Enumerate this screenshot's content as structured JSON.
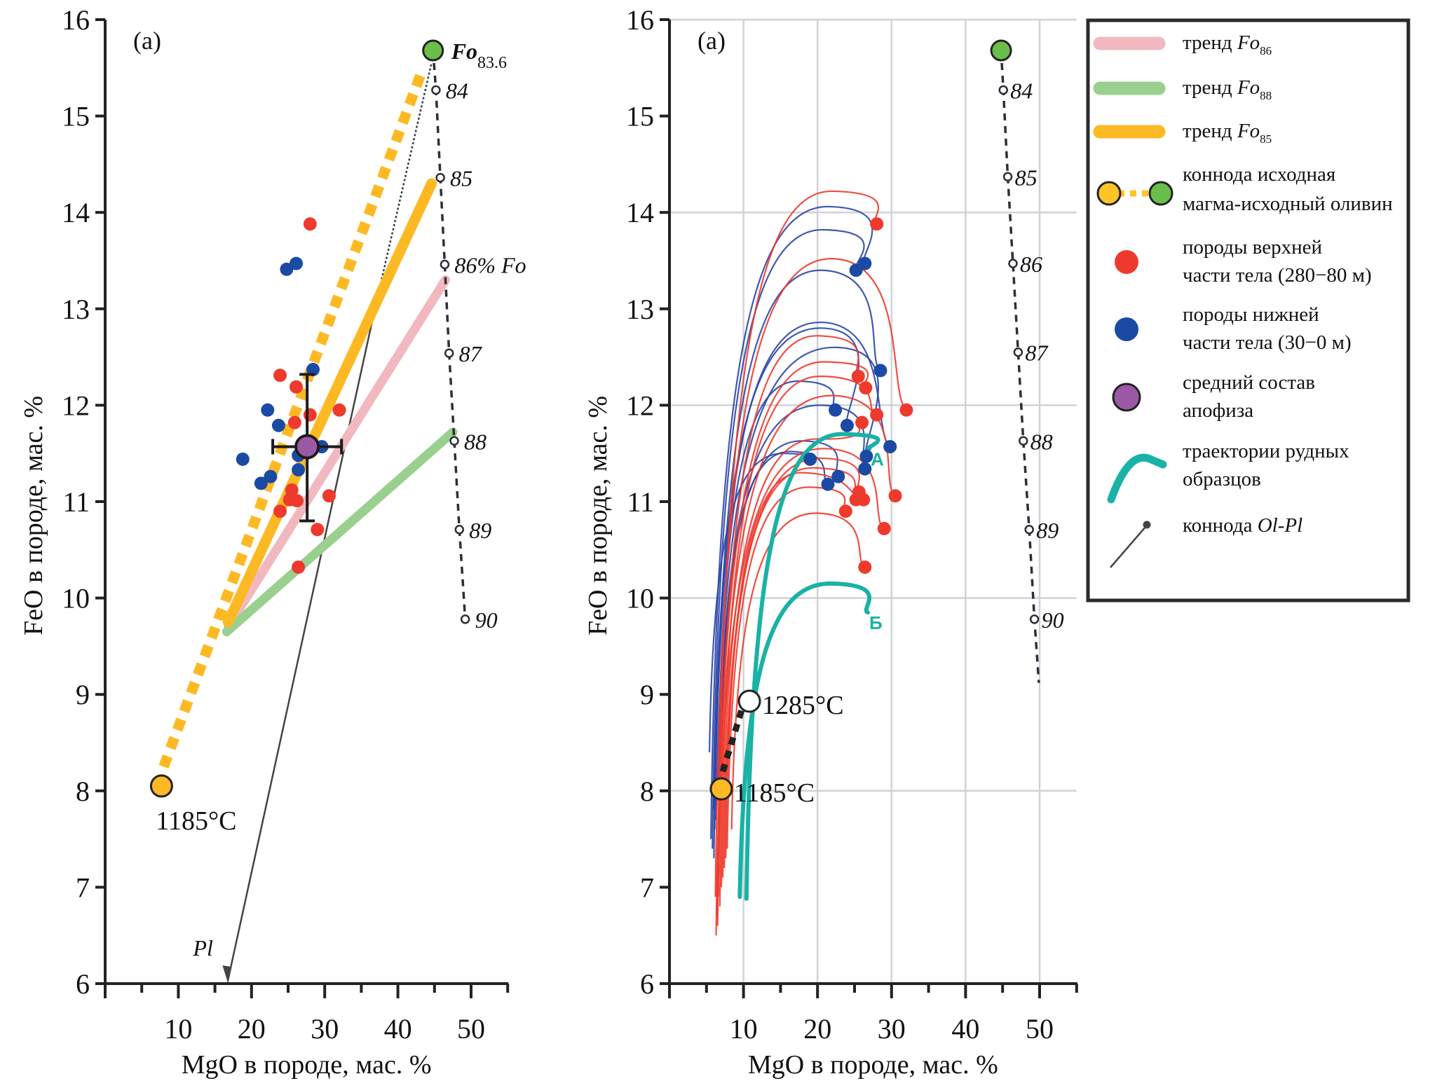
{
  "chart_data": [
    {
      "type": "scatter",
      "panel_label": "(a)",
      "xlabel": "MgO  в породе, мас. %",
      "ylabel": "FeO в породе, мас. %",
      "xlim": [
        0,
        55
      ],
      "ylim": [
        6,
        16
      ],
      "x_ticks": [
        10,
        20,
        30,
        40,
        50
      ],
      "x_minor_ticks": [
        5,
        15,
        25,
        35,
        45,
        55
      ],
      "y_ticks": [
        6,
        7,
        8,
        9,
        10,
        11,
        12,
        13,
        14,
        15,
        16
      ],
      "grid": false,
      "series": [
        {
          "name": "тренд Fo86",
          "kind": "line",
          "color": "#f2b8c0",
          "points": [
            [
              16.8,
              9.7
            ],
            [
              46.5,
              13.3
            ]
          ]
        },
        {
          "name": "тренд Fo88",
          "kind": "line",
          "color": "#99d08f",
          "points": [
            [
              16.6,
              9.65
            ],
            [
              47.5,
              11.72
            ]
          ]
        },
        {
          "name": "тренд Fo85",
          "kind": "line",
          "color": "#fdb924",
          "points": [
            [
              16.8,
              9.75
            ],
            [
              44.6,
              14.3
            ]
          ]
        },
        {
          "name": "коннода исходная магма-исходный оливин",
          "kind": "dashed-thick",
          "color": "#fdb924",
          "points": [
            [
              8.0,
              8.25
            ],
            [
              43.2,
              15.45
            ]
          ]
        },
        {
          "name": "коннода Ol-Pl",
          "kind": "arrow",
          "color": "#444444",
          "points": [
            [
              37.0,
              13.05
            ],
            [
              16.8,
              6.0
            ]
          ],
          "end_label": "Pl"
        },
        {
          "name": "коннода Ol-Pl (продолжение)",
          "kind": "dotted",
          "color": "#333a44",
          "points": [
            [
              37.0,
              13.05
            ],
            [
              44.6,
              15.55
            ]
          ]
        },
        {
          "name": "породы верхней части тела (280−80 м)",
          "kind": "points",
          "color": "#ee3a2c",
          "points": [
            [
              28.0,
              13.88
            ],
            [
              23.9,
              12.31
            ],
            [
              26.1,
              12.19
            ],
            [
              28.0,
              11.9
            ],
            [
              32.0,
              11.95
            ],
            [
              25.9,
              11.82
            ],
            [
              25.5,
              11.12
            ],
            [
              25.2,
              11.02
            ],
            [
              26.2,
              11.01
            ],
            [
              23.9,
              10.9
            ],
            [
              30.6,
              11.06
            ],
            [
              29.0,
              10.71
            ],
            [
              26.4,
              10.32
            ]
          ]
        },
        {
          "name": "породы нижней части тела (30−0 м)",
          "kind": "points",
          "color": "#1b4aa5",
          "points": [
            [
              26.1,
              13.47
            ],
            [
              24.8,
              13.41
            ],
            [
              28.4,
              12.37
            ],
            [
              22.2,
              11.95
            ],
            [
              23.7,
              11.79
            ],
            [
              18.8,
              11.44
            ],
            [
              22.6,
              11.26
            ],
            [
              21.3,
              11.19
            ],
            [
              26.4,
              11.48
            ],
            [
              26.4,
              11.33
            ],
            [
              29.6,
              11.57
            ]
          ]
        },
        {
          "name": "средний состав апофиза",
          "kind": "mean",
          "color": "#9b59a5",
          "point": [
            27.6,
            11.57
          ],
          "x_err": [
            22.9,
            32.3
          ],
          "y_err": [
            10.8,
            12.32
          ]
        },
        {
          "name": "исходная магма",
          "kind": "marker",
          "color": "#fdb924",
          "point": [
            7.7,
            8.05
          ],
          "label": "1185°C"
        },
        {
          "name": "исходный оливин",
          "kind": "marker",
          "color": "#6abf4b",
          "point": [
            44.8,
            15.68
          ],
          "label_main": "Fo",
          "label_sub": "83.6"
        },
        {
          "name": "оливин Fo",
          "kind": "olivine-line",
          "points": [
            [
              45.2,
              15.27
            ],
            [
              45.8,
              14.36
            ],
            [
              46.4,
              13.46
            ],
            [
              47.0,
              12.54
            ],
            [
              47.7,
              11.63
            ],
            [
              48.4,
              10.71
            ],
            [
              49.2,
              9.78
            ]
          ],
          "labels": [
            "84",
            "85",
            "86% Fo",
            "87",
            "88",
            "89",
            "90"
          ]
        }
      ]
    },
    {
      "type": "line",
      "panel_label": "(a)",
      "xlabel": "MgO  в породе, мас. %",
      "ylabel": "FeO в породе, мас. %",
      "xlim": [
        0,
        55
      ],
      "ylim": [
        6,
        16
      ],
      "x_ticks": [
        10,
        20,
        30,
        40,
        50
      ],
      "x_minor_ticks": [
        5,
        15,
        25,
        35,
        45,
        55
      ],
      "y_ticks": [
        6,
        7,
        8,
        9,
        10,
        11,
        12,
        13,
        14,
        15,
        16
      ],
      "grid": true,
      "grid_x": [
        10,
        20,
        30,
        40,
        50
      ],
      "grid_y": [
        8,
        10,
        12,
        14,
        16
      ],
      "series": [
        {
          "name": "траектории (верхняя часть, красные)",
          "kind": "trajectories",
          "color": "#ee3a2c",
          "curves": [
            {
              "start": [
                6.5,
                7.0
              ],
              "peak": [
                22.0,
                14.22
              ],
              "end": [
                28.0,
                13.88
              ]
            },
            {
              "start": [
                6.2,
                6.9
              ],
              "peak": [
                22.0,
                13.52
              ],
              "end": [
                32.0,
                11.95
              ]
            },
            {
              "start": [
                6.5,
                6.6
              ],
              "peak": [
                20.0,
                12.72
              ],
              "end": [
                25.5,
                12.3
              ]
            },
            {
              "start": [
                6.3,
                6.5
              ],
              "peak": [
                21.0,
                12.45
              ],
              "end": [
                26.5,
                12.18
              ]
            },
            {
              "start": [
                6.8,
                6.8
              ],
              "peak": [
                20.5,
                12.3
              ],
              "end": [
                28.0,
                11.9
              ]
            },
            {
              "start": [
                6.4,
                6.7
              ],
              "peak": [
                22.0,
                12.1
              ],
              "end": [
                30.5,
                11.06
              ]
            },
            {
              "start": [
                7.0,
                7.0
              ],
              "peak": [
                20.0,
                11.65
              ],
              "end": [
                26.0,
                11.82
              ]
            },
            {
              "start": [
                6.6,
                6.9
              ],
              "peak": [
                21.0,
                11.55
              ],
              "end": [
                29.0,
                10.72
              ]
            },
            {
              "start": [
                7.2,
                7.1
              ],
              "peak": [
                20.5,
                11.45
              ],
              "end": [
                25.2,
                11.02
              ]
            },
            {
              "start": [
                7.4,
                7.2
              ],
              "peak": [
                19.5,
                11.35
              ],
              "end": [
                25.6,
                11.1
              ]
            },
            {
              "start": [
                7.6,
                7.3
              ],
              "peak": [
                18.0,
                11.3
              ],
              "end": [
                26.2,
                11.02
              ]
            },
            {
              "start": [
                7.8,
                7.4
              ],
              "peak": [
                19.0,
                11.15
              ],
              "end": [
                23.8,
                10.9
              ]
            },
            {
              "start": [
                8.4,
                7.6
              ],
              "peak": [
                20.0,
                10.88
              ],
              "end": [
                26.4,
                10.32
              ]
            }
          ]
        },
        {
          "name": "траектории (нижняя часть, синие)",
          "kind": "trajectories",
          "color": "#2a46a8",
          "curves": [
            {
              "start": [
                5.6,
                7.5
              ],
              "peak": [
                21.5,
                14.06
              ],
              "end": [
                26.4,
                13.47
              ]
            },
            {
              "start": [
                5.8,
                7.4
              ],
              "peak": [
                20.8,
                13.82
              ],
              "end": [
                25.2,
                13.4
              ]
            },
            {
              "start": [
                6.0,
                7.3
              ],
              "peak": [
                20.5,
                13.4
              ],
              "end": [
                28.5,
                12.36
              ]
            },
            {
              "start": [
                6.1,
                7.6
              ],
              "peak": [
                20.5,
                12.86
              ],
              "end": [
                29.8,
                11.57
              ]
            },
            {
              "start": [
                6.3,
                7.7
              ],
              "peak": [
                22.5,
                12.6
              ],
              "end": [
                26.6,
                11.47
              ]
            },
            {
              "start": [
                6.0,
                7.8
              ],
              "peak": [
                20.5,
                12.8
              ],
              "end": [
                24.0,
                11.79
              ]
            },
            {
              "start": [
                6.5,
                7.9
              ],
              "peak": [
                17.5,
                12.25
              ],
              "end": [
                22.4,
                11.95
              ]
            },
            {
              "start": [
                6.6,
                8.0
              ],
              "peak": [
                20.5,
                12.0
              ],
              "end": [
                26.4,
                11.34
              ]
            },
            {
              "start": [
                6.8,
                8.1
              ],
              "peak": [
                18.0,
                11.63
              ],
              "end": [
                22.8,
                11.26
              ]
            },
            {
              "start": [
                7.0,
                8.2
              ],
              "peak": [
                16.5,
                11.52
              ],
              "end": [
                21.4,
                11.18
              ]
            },
            {
              "start": [
                5.4,
                8.4
              ],
              "peak": [
                15.5,
                11.5
              ],
              "end": [
                19.0,
                11.44
              ]
            }
          ]
        },
        {
          "name": "траектории рудных образцов",
          "kind": "ore-trajectories",
          "color": "#19b2a6",
          "curves": [
            {
              "label": "А",
              "start": [
                10.4,
                6.88
              ],
              "peak": [
                23.5,
                11.7
              ],
              "end": [
                27.0,
                11.55
              ]
            },
            {
              "label": "Б",
              "start": [
                9.5,
                6.9
              ],
              "peak": [
                22.0,
                10.15
              ],
              "end": [
                26.8,
                9.85
              ]
            }
          ]
        },
        {
          "name": "коннода 1185-1285",
          "kind": "dashed-black",
          "color": "#222222",
          "points": [
            [
              7.2,
              8.2
            ],
            [
              9.8,
              8.85
            ]
          ]
        },
        {
          "name": "исходная магма",
          "kind": "marker",
          "color": "#fdb924",
          "point": [
            7.0,
            8.02
          ],
          "label": "1185°C"
        },
        {
          "name": "магма 1285",
          "kind": "marker",
          "color": "#ffffff",
          "point": [
            10.8,
            8.93
          ],
          "label": "1285°C"
        },
        {
          "name": "исходный оливин",
          "kind": "marker",
          "color": "#6abf4b",
          "point": [
            44.8,
            15.68
          ]
        },
        {
          "name": "оливин Fo",
          "kind": "olivine-line",
          "points": [
            [
              45.1,
              15.27
            ],
            [
              45.7,
              14.37
            ],
            [
              46.4,
              13.47
            ],
            [
              47.1,
              12.55
            ],
            [
              47.8,
              11.63
            ],
            [
              48.6,
              10.71
            ],
            [
              49.3,
              9.78
            ]
          ],
          "end": [
            49.9,
            9.12
          ],
          "labels": [
            "84",
            "85",
            "86",
            "87",
            "88",
            "89",
            "90"
          ]
        }
      ]
    }
  ],
  "legend": {
    "items": [
      {
        "kind": "line",
        "color": "#f2b8c0",
        "text": "тренд ",
        "italic": "Fo",
        "sub": "86"
      },
      {
        "kind": "line",
        "color": "#99d08f",
        "text": "тренд ",
        "italic": "Fo",
        "sub": "88"
      },
      {
        "kind": "line",
        "color": "#fdb924",
        "text": "тренд ",
        "italic": "Fo",
        "sub": "85"
      },
      {
        "kind": "tieline",
        "colors": [
          "#fdc526",
          "#6abf4b"
        ],
        "lines": [
          "коннода исходная",
          "магма-исходный оливин"
        ]
      },
      {
        "kind": "dot",
        "color": "#ee3a2c",
        "lines": [
          "породы верхней",
          "части тела (280−80 м)"
        ]
      },
      {
        "kind": "dot",
        "color": "#1b4aa5",
        "lines": [
          "породы нижней",
          "части тела (30−0 м)"
        ]
      },
      {
        "kind": "ring",
        "color": "#9b59a5",
        "lines": [
          "средний состав",
          "апофиза"
        ]
      },
      {
        "kind": "teal",
        "color": "#19b2a6",
        "lines": [
          "траектории рудных",
          "образцов"
        ]
      },
      {
        "kind": "olpl",
        "color": "#444444",
        "text": "коннода ",
        "italic": "Ol-Pl"
      }
    ]
  }
}
